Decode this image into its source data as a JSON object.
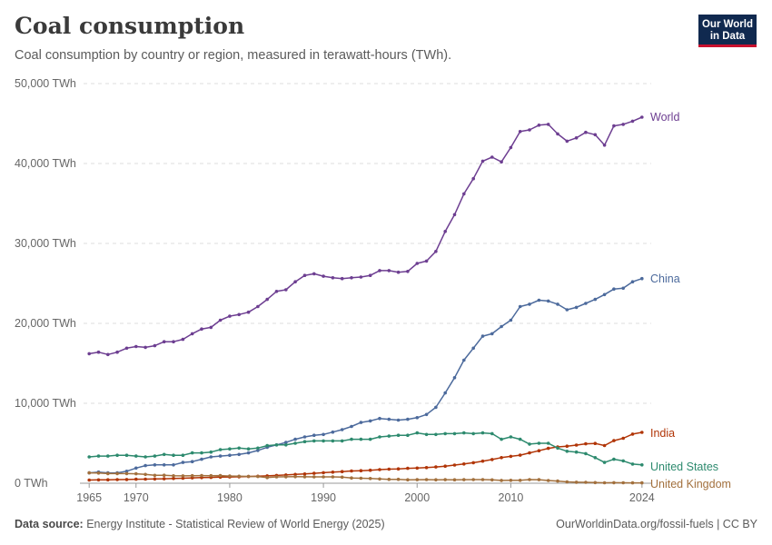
{
  "header": {
    "title": "Coal consumption",
    "subtitle": "Coal consumption by country or region, measured in terawatt-hours (TWh)."
  },
  "logo": {
    "line1": "Our World",
    "line2": "in Data"
  },
  "footer": {
    "source_label": "Data source:",
    "source_text": "Energy Institute - Statistical Review of World Energy (2025)",
    "url": "OurWorldinData.org/fossil-fuels | CC BY"
  },
  "colors": {
    "World": "#6d3e91",
    "China": "#4c6a9c",
    "India": "#b13507",
    "United States": "#2d8a6e",
    "United Kingdom": "#a2703d"
  },
  "chart_data": {
    "type": "line",
    "ylim": [
      0,
      50000
    ],
    "xlim": [
      1965,
      2024
    ],
    "y_ticks": [
      {
        "value": 0,
        "label": "0 TWh"
      },
      {
        "value": 10000,
        "label": "10,000 TWh"
      },
      {
        "value": 20000,
        "label": "20,000 TWh"
      },
      {
        "value": 30000,
        "label": "30,000 TWh"
      },
      {
        "value": 40000,
        "label": "40,000 TWh"
      },
      {
        "value": 50000,
        "label": "50,000 TWh"
      }
    ],
    "x_ticks": [
      {
        "value": 1965,
        "label": "1965"
      },
      {
        "value": 1970,
        "label": "1970"
      },
      {
        "value": 1980,
        "label": "1980"
      },
      {
        "value": 1990,
        "label": "1990"
      },
      {
        "value": 2000,
        "label": "2000"
      },
      {
        "value": 2010,
        "label": "2010"
      },
      {
        "value": 2024,
        "label": "2024"
      }
    ],
    "grid": "horizontal dashed",
    "legend": "labels at line ends (right)",
    "series": [
      {
        "name": "World",
        "start_year": 1965,
        "values": [
          16200,
          16400,
          16100,
          16400,
          16900,
          17100,
          17000,
          17200,
          17700,
          17700,
          18000,
          18700,
          19300,
          19500,
          20400,
          20900,
          21100,
          21400,
          22100,
          23000,
          24000,
          24200,
          25200,
          26000,
          26200,
          25900,
          25700,
          25600,
          25700,
          25800,
          26000,
          26600,
          26600,
          26400,
          26500,
          27500,
          27800,
          29000,
          31500,
          33600,
          36200,
          38100,
          40300,
          40800,
          40200,
          42000,
          44000,
          44200,
          44800,
          44900,
          43700,
          42800,
          43200,
          43900,
          43600,
          42300,
          44700,
          44900,
          45300,
          45800
        ]
      },
      {
        "name": "China",
        "start_year": 1965,
        "values": [
          1300,
          1400,
          1300,
          1300,
          1500,
          1900,
          2200,
          2300,
          2300,
          2300,
          2600,
          2700,
          3000,
          3300,
          3400,
          3500,
          3600,
          3800,
          4100,
          4500,
          4800,
          5100,
          5500,
          5800,
          6000,
          6100,
          6400,
          6700,
          7100,
          7600,
          7800,
          8100,
          8000,
          7900,
          8000,
          8200,
          8600,
          9500,
          11300,
          13200,
          15400,
          16900,
          18400,
          18700,
          19600,
          20400,
          22100,
          22400,
          22900,
          22800,
          22400,
          21700,
          22000,
          22500,
          23000,
          23600,
          24300,
          24400,
          25200,
          25600
        ]
      },
      {
        "name": "India",
        "start_year": 1965,
        "values": [
          400,
          420,
          430,
          450,
          470,
          500,
          510,
          530,
          560,
          600,
          630,
          670,
          700,
          730,
          760,
          780,
          810,
          840,
          880,
          920,
          980,
          1030,
          1100,
          1160,
          1240,
          1320,
          1390,
          1460,
          1530,
          1570,
          1630,
          1710,
          1760,
          1800,
          1860,
          1900,
          1950,
          2030,
          2140,
          2270,
          2410,
          2570,
          2760,
          2970,
          3200,
          3360,
          3510,
          3800,
          4070,
          4360,
          4540,
          4640,
          4770,
          4930,
          4980,
          4720,
          5330,
          5620,
          6150,
          6360
        ]
      },
      {
        "name": "United States",
        "start_year": 1965,
        "values": [
          3300,
          3400,
          3400,
          3500,
          3500,
          3400,
          3300,
          3400,
          3600,
          3500,
          3500,
          3800,
          3800,
          3900,
          4200,
          4300,
          4400,
          4300,
          4400,
          4700,
          4800,
          4800,
          5000,
          5200,
          5300,
          5300,
          5300,
          5300,
          5500,
          5500,
          5500,
          5800,
          5900,
          6000,
          6000,
          6300,
          6100,
          6100,
          6200,
          6200,
          6300,
          6200,
          6300,
          6200,
          5500,
          5800,
          5500,
          4900,
          5000,
          5000,
          4400,
          4000,
          3900,
          3700,
          3200,
          2600,
          3000,
          2800,
          2400,
          2300
        ]
      },
      {
        "name": "United Kingdom",
        "start_year": 1965,
        "values": [
          1300,
          1270,
          1200,
          1200,
          1200,
          1180,
          1100,
          990,
          1000,
          930,
          920,
          940,
          950,
          940,
          960,
          900,
          870,
          850,
          840,
          710,
          800,
          810,
          820,
          810,
          800,
          800,
          800,
          760,
          660,
          620,
          590,
          530,
          490,
          490,
          430,
          440,
          460,
          430,
          440,
          430,
          440,
          460,
          460,
          420,
          350,
          360,
          360,
          460,
          440,
          340,
          270,
          170,
          130,
          110,
          80,
          60,
          70,
          60,
          50,
          45
        ]
      }
    ]
  }
}
